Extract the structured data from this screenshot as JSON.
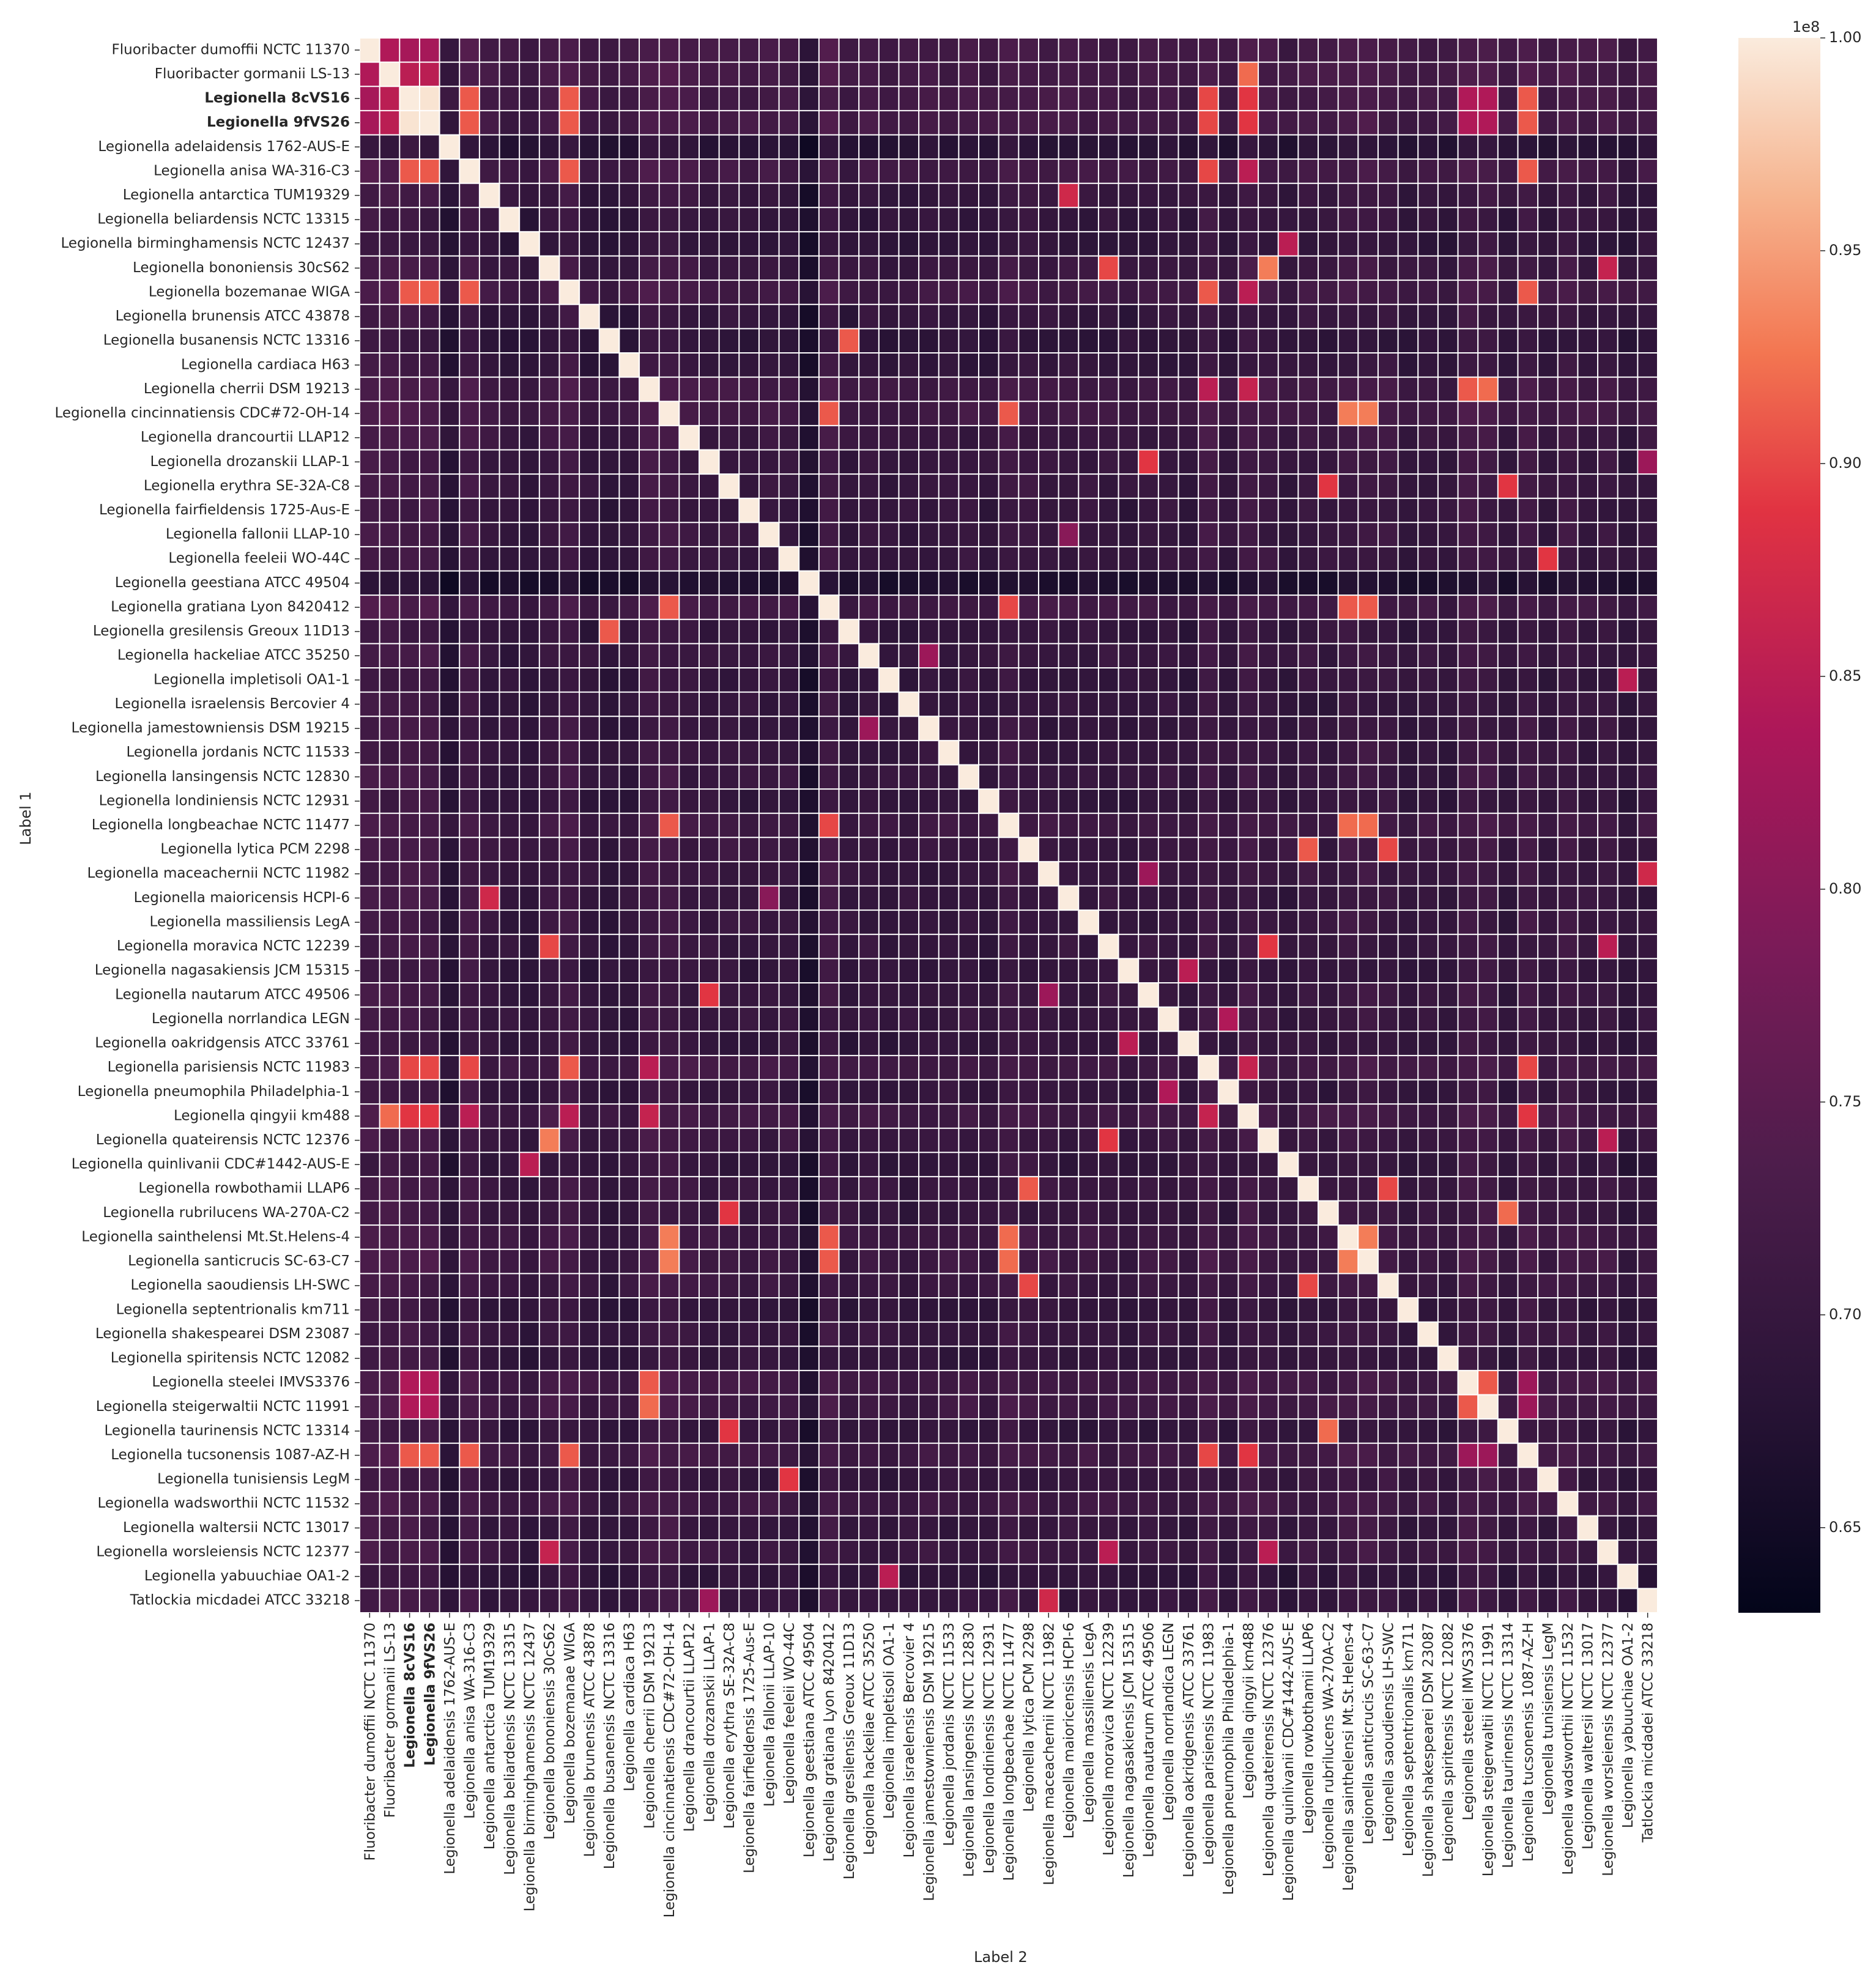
{
  "chart_data": {
    "type": "heatmap",
    "title": "",
    "xlabel": "Label 2",
    "ylabel": "Label 1",
    "colorscale": "rocket",
    "value_range": [
      63000000,
      100000000
    ],
    "colorbar": {
      "multiplier": "1e8",
      "ticks": [
        "0.65",
        "0.70",
        "0.75",
        "0.80",
        "0.85",
        "0.90",
        "0.95",
        "1.00"
      ],
      "tick_values": [
        65000000,
        70000000,
        75000000,
        80000000,
        85000000,
        90000000,
        95000000,
        100000000
      ]
    },
    "labels": [
      "Fluoribacter dumoffii NCTC 11370",
      "Fluoribacter gormanii LS-13",
      "Legionella 8cVS16",
      "Legionella 9fVS26",
      "Legionella adelaidensis 1762-AUS-E",
      "Legionella anisa WA-316-C3",
      "Legionella antarctica TUM19329",
      "Legionella beliardensis NCTC 13315",
      "Legionella birminghamensis NCTC 12437",
      "Legionella bononiensis 30cS62",
      "Legionella bozemanae WIGA",
      "Legionella brunensis ATCC 43878",
      "Legionella busanensis NCTC 13316",
      "Legionella cardiaca H63",
      "Legionella cherrii DSM 19213",
      "Legionella cincinnatiensis CDC#72-OH-14",
      "Legionella drancourtii LLAP12",
      "Legionella drozanskii LLAP-1",
      "Legionella erythra SE-32A-C8",
      "Legionella fairfieldensis 1725-Aus-E",
      "Legionella fallonii LLAP-10",
      "Legionella feeleii WO-44C",
      "Legionella geestiana ATCC 49504",
      "Legionella gratiana Lyon 8420412",
      "Legionella gresilensis Greoux 11D13",
      "Legionella hackeliae ATCC 35250",
      "Legionella impletisoli OA1-1",
      "Legionella israelensis Bercovier 4",
      "Legionella jamestowniensis DSM 19215",
      "Legionella jordanis NCTC 11533",
      "Legionella lansingensis NCTC 12830",
      "Legionella londiniensis NCTC 12931",
      "Legionella longbeachae NCTC 11477",
      "Legionella lytica PCM 2298",
      "Legionella maceachernii NCTC 11982",
      "Legionella maioricensis HCPI-6",
      "Legionella massiliensis LegA",
      "Legionella moravica NCTC 12239",
      "Legionella nagasakiensis JCM 15315",
      "Legionella nautarum ATCC 49506",
      "Legionella norrlandica LEGN",
      "Legionella oakridgensis ATCC 33761",
      "Legionella parisiensis NCTC 11983",
      "Legionella pneumophila Philadelphia-1",
      "Legionella qingyii km488",
      "Legionella quateirensis NCTC 12376",
      "Legionella quinlivanii CDC#1442-AUS-E",
      "Legionella rowbothamii LLAP6",
      "Legionella rubrilucens WA-270A-C2",
      "Legionella sainthelensi Mt.St.Helens-4",
      "Legionella santicrucis SC-63-C7",
      "Legionella saoudiensis LH-SWC",
      "Legionella septentrionalis km711",
      "Legionella shakespearei DSM 23087",
      "Legionella spiritensis NCTC 12082",
      "Legionella steelei IMVS3376",
      "Legionella steigerwaltii NCTC 11991",
      "Legionella taurinensis NCTC 13314",
      "Legionella tucsonensis 1087-AZ-H",
      "Legionella tunisiensis LegM",
      "Legionella wadsworthii NCTC 11532",
      "Legionella waltersii NCTC 13017",
      "Legionella worsleiensis NCTC 12377",
      "Legionella yabuuchiae OA1-2",
      "Tatlockia micdadei ATCC 33218"
    ],
    "bold_labels": [
      "Legionella 8cVS16",
      "Legionella 9fVS26"
    ],
    "diagonal_value": 100000000,
    "baseline_value": 70000000,
    "row_offsets": [
      4000000,
      4000000,
      4000000,
      4000000,
      -4000000,
      3000000,
      0,
      -1000000,
      -2000000,
      1000000,
      3000000,
      -1000000,
      -2000000,
      -1000000,
      3000000,
      3000000,
      1000000,
      0,
      0,
      0,
      0,
      0,
      -7000000,
      3000000,
      -1000000,
      0,
      -1000000,
      -1000000,
      0,
      0,
      0,
      -1000000,
      2000000,
      1000000,
      0,
      0,
      0,
      0,
      -1000000,
      0,
      0,
      -1000000,
      3000000,
      -1000000,
      3000000,
      1000000,
      -1000000,
      1000000,
      0,
      2000000,
      2000000,
      1000000,
      -1000000,
      0,
      -1000000,
      3000000,
      3000000,
      -1000000,
      3000000,
      0,
      2000000,
      0,
      1000000,
      -2000000,
      0
    ],
    "pairs": [
      {
        "a": "Legionella 8cVS16",
        "b": "Legionella 9fVS26",
        "value": 99500000
      },
      {
        "a": "Fluoribacter dumoffii NCTC 11370",
        "b": "Fluoribacter gormanii LS-13",
        "value": 84000000
      },
      {
        "a": "Fluoribacter dumoffii NCTC 11370",
        "b": "Legionella 8cVS16",
        "value": 83000000
      },
      {
        "a": "Fluoribacter dumoffii NCTC 11370",
        "b": "Legionella 9fVS26",
        "value": 83000000
      },
      {
        "a": "Fluoribacter gormanii LS-13",
        "b": "Legionella 8cVS16",
        "value": 85000000
      },
      {
        "a": "Fluoribacter gormanii LS-13",
        "b": "Legionella 9fVS26",
        "value": 85000000
      },
      {
        "a": "Fluoribacter gormanii LS-13",
        "b": "Legionella qingyii km488",
        "value": 92000000
      },
      {
        "a": "Legionella 8cVS16",
        "b": "Legionella anisa WA-316-C3",
        "value": 91000000
      },
      {
        "a": "Legionella 9fVS26",
        "b": "Legionella anisa WA-316-C3",
        "value": 91000000
      },
      {
        "a": "Legionella 8cVS16",
        "b": "Legionella bozemanae WIGA",
        "value": 91000000
      },
      {
        "a": "Legionella 9fVS26",
        "b": "Legionella bozemanae WIGA",
        "value": 91000000
      },
      {
        "a": "Legionella 8cVS16",
        "b": "Legionella parisiensis NCTC 11983",
        "value": 90000000
      },
      {
        "a": "Legionella 9fVS26",
        "b": "Legionella parisiensis NCTC 11983",
        "value": 90000000
      },
      {
        "a": "Legionella 8cVS16",
        "b": "Legionella qingyii km488",
        "value": 89000000
      },
      {
        "a": "Legionella 9fVS26",
        "b": "Legionella qingyii km488",
        "value": 89000000
      },
      {
        "a": "Legionella 8cVS16",
        "b": "Legionella tucsonensis 1087-AZ-H",
        "value": 91000000
      },
      {
        "a": "Legionella 9fVS26",
        "b": "Legionella tucsonensis 1087-AZ-H",
        "value": 91000000
      },
      {
        "a": "Legionella 8cVS16",
        "b": "Legionella steelei IMVS3376",
        "value": 84000000
      },
      {
        "a": "Legionella 9fVS26",
        "b": "Legionella steelei IMVS3376",
        "value": 84000000
      },
      {
        "a": "Legionella 8cVS16",
        "b": "Legionella steigerwaltii NCTC 11991",
        "value": 84000000
      },
      {
        "a": "Legionella 9fVS26",
        "b": "Legionella steigerwaltii NCTC 11991",
        "value": 84000000
      },
      {
        "a": "Legionella anisa WA-316-C3",
        "b": "Legionella bozemanae WIGA",
        "value": 91000000
      },
      {
        "a": "Legionella anisa WA-316-C3",
        "b": "Legionella parisiensis NCTC 11983",
        "value": 90000000
      },
      {
        "a": "Legionella anisa WA-316-C3",
        "b": "Legionella qingyii km488",
        "value": 85000000
      },
      {
        "a": "Legionella anisa WA-316-C3",
        "b": "Legionella tucsonensis 1087-AZ-H",
        "value": 91000000
      },
      {
        "a": "Legionella bozemanae WIGA",
        "b": "Legionella parisiensis NCTC 11983",
        "value": 91000000
      },
      {
        "a": "Legionella bozemanae WIGA",
        "b": "Legionella qingyii km488",
        "value": 85000000
      },
      {
        "a": "Legionella bozemanae WIGA",
        "b": "Legionella tucsonensis 1087-AZ-H",
        "value": 91000000
      },
      {
        "a": "Legionella parisiensis NCTC 11983",
        "b": "Legionella qingyii km488",
        "value": 86000000
      },
      {
        "a": "Legionella parisiensis NCTC 11983",
        "b": "Legionella tucsonensis 1087-AZ-H",
        "value": 90000000
      },
      {
        "a": "Legionella qingyii km488",
        "b": "Legionella tucsonensis 1087-AZ-H",
        "value": 89000000
      },
      {
        "a": "Legionella antarctica TUM19329",
        "b": "Legionella maioricensis HCPI-6",
        "value": 87000000
      },
      {
        "a": "Legionella birminghamensis NCTC 12437",
        "b": "Legionella quinlivanii CDC#1442-AUS-E",
        "value": 85000000
      },
      {
        "a": "Legionella bononiensis 30cS62",
        "b": "Legionella moravica NCTC 12239",
        "value": 90000000
      },
      {
        "a": "Legionella bononiensis 30cS62",
        "b": "Legionella quateirensis NCTC 12376",
        "value": 93000000
      },
      {
        "a": "Legionella bononiensis 30cS62",
        "b": "Legionella worsleiensis NCTC 12377",
        "value": 86000000
      },
      {
        "a": "Legionella moravica NCTC 12239",
        "b": "Legionella quateirensis NCTC 12376",
        "value": 89000000
      },
      {
        "a": "Legionella moravica NCTC 12239",
        "b": "Legionella worsleiensis NCTC 12377",
        "value": 85000000
      },
      {
        "a": "Legionella quateirensis NCTC 12376",
        "b": "Legionella worsleiensis NCTC 12377",
        "value": 85000000
      },
      {
        "a": "Legionella busanensis NCTC 13316",
        "b": "Legionella gresilensis Greoux 11D13",
        "value": 91000000
      },
      {
        "a": "Legionella cherrii DSM 19213",
        "b": "Legionella steelei IMVS3376",
        "value": 91000000
      },
      {
        "a": "Legionella cherrii DSM 19213",
        "b": "Legionella steigerwaltii NCTC 11991",
        "value": 92000000
      },
      {
        "a": "Legionella cherrii DSM 19213",
        "b": "Legionella parisiensis NCTC 11983",
        "value": 85000000
      },
      {
        "a": "Legionella cherrii DSM 19213",
        "b": "Legionella qingyii km488",
        "value": 86000000
      },
      {
        "a": "Legionella steelei IMVS3376",
        "b": "Legionella steigerwaltii NCTC 11991",
        "value": 91000000
      },
      {
        "a": "Legionella cincinnatiensis CDC#72-OH-14",
        "b": "Legionella gratiana Lyon 8420412",
        "value": 91000000
      },
      {
        "a": "Legionella cincinnatiensis CDC#72-OH-14",
        "b": "Legionella longbeachae NCTC 11477",
        "value": 91000000
      },
      {
        "a": "Legionella cincinnatiensis CDC#72-OH-14",
        "b": "Legionella sainthelensi Mt.St.Helens-4",
        "value": 93000000
      },
      {
        "a": "Legionella cincinnatiensis CDC#72-OH-14",
        "b": "Legionella santicrucis SC-63-C7",
        "value": 93000000
      },
      {
        "a": "Legionella gratiana Lyon 8420412",
        "b": "Legionella longbeachae NCTC 11477",
        "value": 90000000
      },
      {
        "a": "Legionella gratiana Lyon 8420412",
        "b": "Legionella sainthelensi Mt.St.Helens-4",
        "value": 91000000
      },
      {
        "a": "Legionella gratiana Lyon 8420412",
        "b": "Legionella santicrucis SC-63-C7",
        "value": 91000000
      },
      {
        "a": "Legionella longbeachae NCTC 11477",
        "b": "Legionella sainthelensi Mt.St.Helens-4",
        "value": 92000000
      },
      {
        "a": "Legionella longbeachae NCTC 11477",
        "b": "Legionella santicrucis SC-63-C7",
        "value": 92000000
      },
      {
        "a": "Legionella sainthelensi Mt.St.Helens-4",
        "b": "Legionella santicrucis SC-63-C7",
        "value": 93000000
      },
      {
        "a": "Legionella drozanskii LLAP-1",
        "b": "Legionella nautarum ATCC 49506",
        "value": 89000000
      },
      {
        "a": "Legionella drozanskii LLAP-1",
        "b": "Tatlockia micdadei ATCC 33218",
        "value": 82000000
      },
      {
        "a": "Legionella erythra SE-32A-C8",
        "b": "Legionella rubrilucens WA-270A-C2",
        "value": 89000000
      },
      {
        "a": "Legionella erythra SE-32A-C8",
        "b": "Legionella taurinensis NCTC 13314",
        "value": 89000000
      },
      {
        "a": "Legionella rubrilucens WA-270A-C2",
        "b": "Legionella taurinensis NCTC 13314",
        "value": 92000000
      },
      {
        "a": "Legionella fallonii LLAP-10",
        "b": "Legionella maioricensis HCPI-6",
        "value": 80000000
      },
      {
        "a": "Legionella feeleii WO-44C",
        "b": "Legionella tunisiensis LegM",
        "value": 89000000
      },
      {
        "a": "Legionella hackeliae ATCC 35250",
        "b": "Legionella jamestowniensis DSM 19215",
        "value": 82000000
      },
      {
        "a": "Legionella impletisoli OA1-1",
        "b": "Legionella yabuuchiae OA1-2",
        "value": 85000000
      },
      {
        "a": "Legionella lytica PCM 2298",
        "b": "Legionella rowbothamii LLAP6",
        "value": 91000000
      },
      {
        "a": "Legionella lytica PCM 2298",
        "b": "Legionella saoudiensis LH-SWC",
        "value": 90000000
      },
      {
        "a": "Legionella rowbothamii LLAP6",
        "b": "Legionella saoudiensis LH-SWC",
        "value": 90000000
      },
      {
        "a": "Legionella maceachernii NCTC 11982",
        "b": "Tatlockia micdadei ATCC 33218",
        "value": 87000000
      },
      {
        "a": "Legionella nautarum ATCC 49506",
        "b": "Legionella maceachernii NCTC 11982",
        "value": 82000000
      },
      {
        "a": "Legionella nagasakiensis JCM 15315",
        "b": "Legionella oakridgensis ATCC 33761",
        "value": 85000000
      },
      {
        "a": "Legionella norrlandica LEGN",
        "b": "Legionella pneumophila Philadelphia-1",
        "value": 84000000
      },
      {
        "a": "Legionella steelei IMVS3376",
        "b": "Legionella tucsonensis 1087-AZ-H",
        "value": 82000000
      },
      {
        "a": "Legionella steigerwaltii NCTC 11991",
        "b": "Legionella tucsonensis 1087-AZ-H",
        "value": 82000000
      }
    ]
  }
}
